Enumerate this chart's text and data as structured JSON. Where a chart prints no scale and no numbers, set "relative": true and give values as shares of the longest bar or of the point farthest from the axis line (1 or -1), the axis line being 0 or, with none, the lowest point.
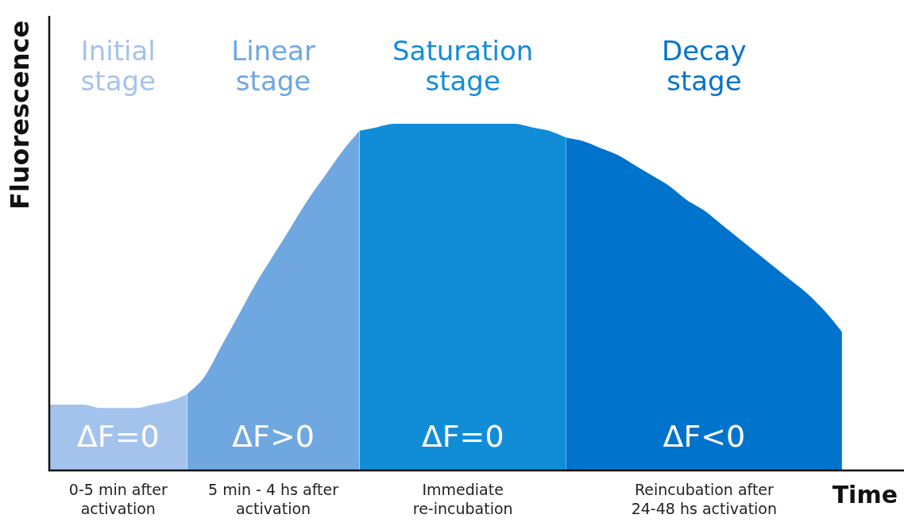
{
  "chart_data": {
    "type": "area",
    "relative": true,
    "xlabel": "Time",
    "ylabel": "Fluorescence",
    "legend": false,
    "categories": [
      null,
      null,
      null,
      null,
      null,
      null,
      null,
      null,
      null,
      null,
      null,
      null,
      null,
      null,
      null,
      null,
      null,
      null,
      null,
      null,
      null,
      null,
      null,
      null,
      null,
      null,
      null,
      null,
      null,
      null,
      null,
      null,
      null,
      null,
      null,
      null,
      null,
      null,
      null,
      null,
      null,
      null,
      null,
      null,
      null,
      null,
      null,
      null,
      null,
      null
    ],
    "series": [
      {
        "name": "Initial stage",
        "color": "#a4c3ec",
        "values": [
          0.19,
          0.19,
          0.19,
          0.18,
          0.18,
          0.18,
          0.19,
          0.2,
          0.22,
          null,
          null,
          null,
          null,
          null,
          null,
          null,
          null,
          null,
          null,
          null,
          null,
          null,
          null,
          null,
          null,
          null,
          null,
          null,
          null,
          null,
          null,
          null,
          null,
          null,
          null,
          null,
          null,
          null,
          null,
          null,
          null,
          null,
          null,
          null,
          null,
          null,
          null,
          null,
          null,
          null
        ]
      },
      {
        "name": "Linear stage",
        "color": "#6fa7e0",
        "values": [
          null,
          null,
          null,
          null,
          null,
          null,
          null,
          null,
          0.22,
          0.27,
          0.36,
          0.45,
          0.54,
          0.62,
          0.7,
          0.78,
          0.85,
          0.92,
          0.98,
          null,
          null,
          null,
          null,
          null,
          null,
          null,
          null,
          null,
          null,
          null,
          null,
          null,
          null,
          null,
          null,
          null,
          null,
          null,
          null,
          null,
          null,
          null,
          null,
          null,
          null,
          null,
          null,
          null,
          null,
          null
        ]
      },
      {
        "name": "Saturation stage",
        "color": "#118dd8",
        "values": [
          null,
          null,
          null,
          null,
          null,
          null,
          null,
          null,
          null,
          null,
          null,
          null,
          null,
          null,
          null,
          null,
          null,
          null,
          0.98,
          0.99,
          1,
          1,
          1,
          1,
          1,
          1,
          1,
          1,
          0.99,
          0.98,
          0.96,
          null,
          null,
          null,
          null,
          null,
          null,
          null,
          null,
          null,
          null,
          null,
          null,
          null,
          null,
          null,
          null,
          null,
          null,
          null
        ]
      },
      {
        "name": "Decay stage",
        "color": "#0073cc",
        "values": [
          null,
          null,
          null,
          null,
          null,
          null,
          null,
          null,
          null,
          null,
          null,
          null,
          null,
          null,
          null,
          null,
          null,
          null,
          null,
          null,
          null,
          null,
          null,
          null,
          null,
          null,
          null,
          null,
          null,
          null,
          0.96,
          0.95,
          0.93,
          0.91,
          0.88,
          0.85,
          0.82,
          0.78,
          0.75,
          0.71,
          0.67,
          0.63,
          0.59,
          0.55,
          0.51,
          0.46,
          0.4,
          null,
          null,
          null
        ]
      }
    ],
    "annotations": [
      "ΔF=0",
      "ΔF>0",
      "ΔF=0",
      "ΔF<0",
      "0-5 min after activation",
      "5 min - 4 hs after activation",
      "Immediate re-incubation",
      "Reincubation after 24-48 hs activation"
    ]
  }
}
